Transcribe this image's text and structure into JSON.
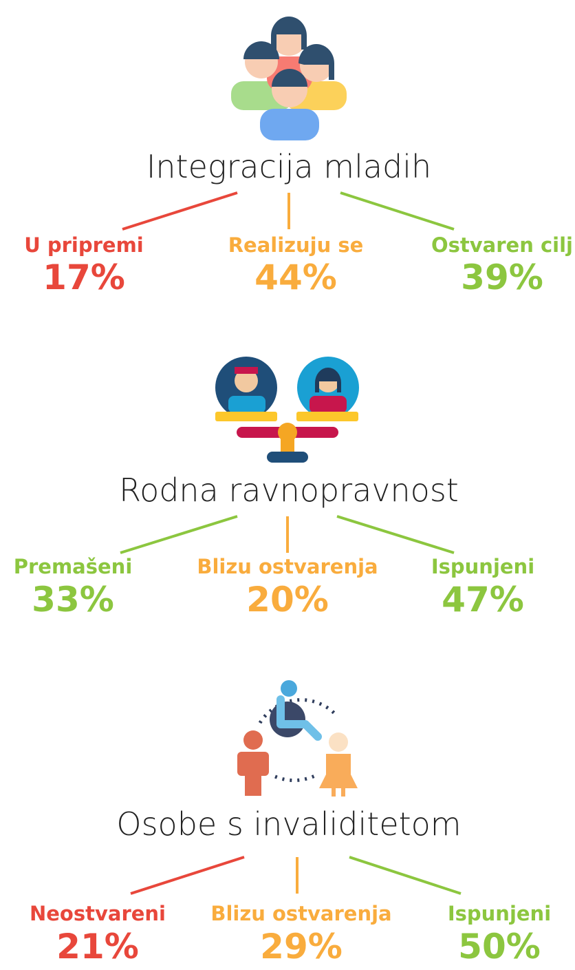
{
  "sections": [
    {
      "title": "Integracija mladih",
      "items": [
        {
          "label": "U pripremi",
          "value": "17%",
          "color": "#e8473b"
        },
        {
          "label": "Realizuju se",
          "value": "44%",
          "color": "#f9ac3d"
        },
        {
          "label": "Ostvaren cilj",
          "value": "39%",
          "color": "#8cc63f"
        }
      ]
    },
    {
      "title": "Rodna ravnopravnost",
      "items": [
        {
          "label": "Premašeni",
          "value": "33%",
          "color": "#8cc63f"
        },
        {
          "label": "Blizu ostvarenja",
          "value": "20%",
          "color": "#f9ac3d"
        },
        {
          "label": "Ispunjeni",
          "value": "47%",
          "color": "#8cc63f"
        }
      ]
    },
    {
      "title": "Osobe s invaliditetom",
      "items": [
        {
          "label": "Neostvareni",
          "value": "21%",
          "color": "#e8473b"
        },
        {
          "label": "Blizu ostvarenja",
          "value": "29%",
          "color": "#f9ac3d"
        },
        {
          "label": "Ispunjeni",
          "value": "50%",
          "color": "#8cc63f"
        }
      ]
    }
  ]
}
